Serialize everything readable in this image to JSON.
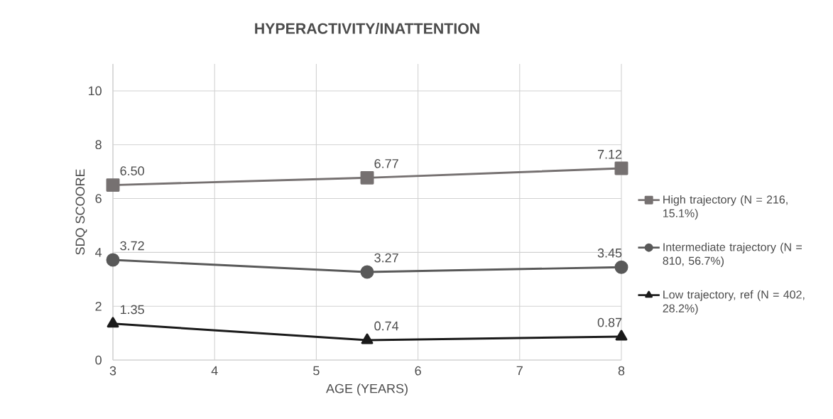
{
  "chart_data": {
    "type": "line",
    "title": "HYPERACTIVITY/INATTENTION",
    "xlabel": "AGE (YEARS)",
    "ylabel": "SDQ SCOORE",
    "x": [
      3,
      5.5,
      8
    ],
    "series": [
      {
        "name": "High trajectory (N = 216, 15.1%)",
        "color": "#767171",
        "marker": "square",
        "values": [
          6.5,
          6.77,
          7.12
        ],
        "value_labels": [
          "6.50",
          "6.77",
          "7.12"
        ]
      },
      {
        "name": "Intermediate trajectory (N = 810, 56.7%)",
        "color": "#595959",
        "marker": "circle",
        "values": [
          3.72,
          3.27,
          3.45
        ],
        "value_labels": [
          "3.72",
          "3.27",
          "3.45"
        ]
      },
      {
        "name": "Low trajectory, ref (N = 402, 28.2%)",
        "color": "#1a1a1a",
        "marker": "triangle",
        "values": [
          1.35,
          0.74,
          0.87
        ],
        "value_labels": [
          "1.35",
          "0.74",
          "0.87"
        ]
      }
    ],
    "xlim": [
      3,
      8
    ],
    "xticks": [
      3,
      4,
      5,
      6,
      7,
      8
    ],
    "ylim": [
      0,
      11
    ],
    "yticks": [
      0,
      2,
      4,
      6,
      8,
      10
    ],
    "grid": true,
    "legend": "right",
    "line_style": "solid"
  }
}
